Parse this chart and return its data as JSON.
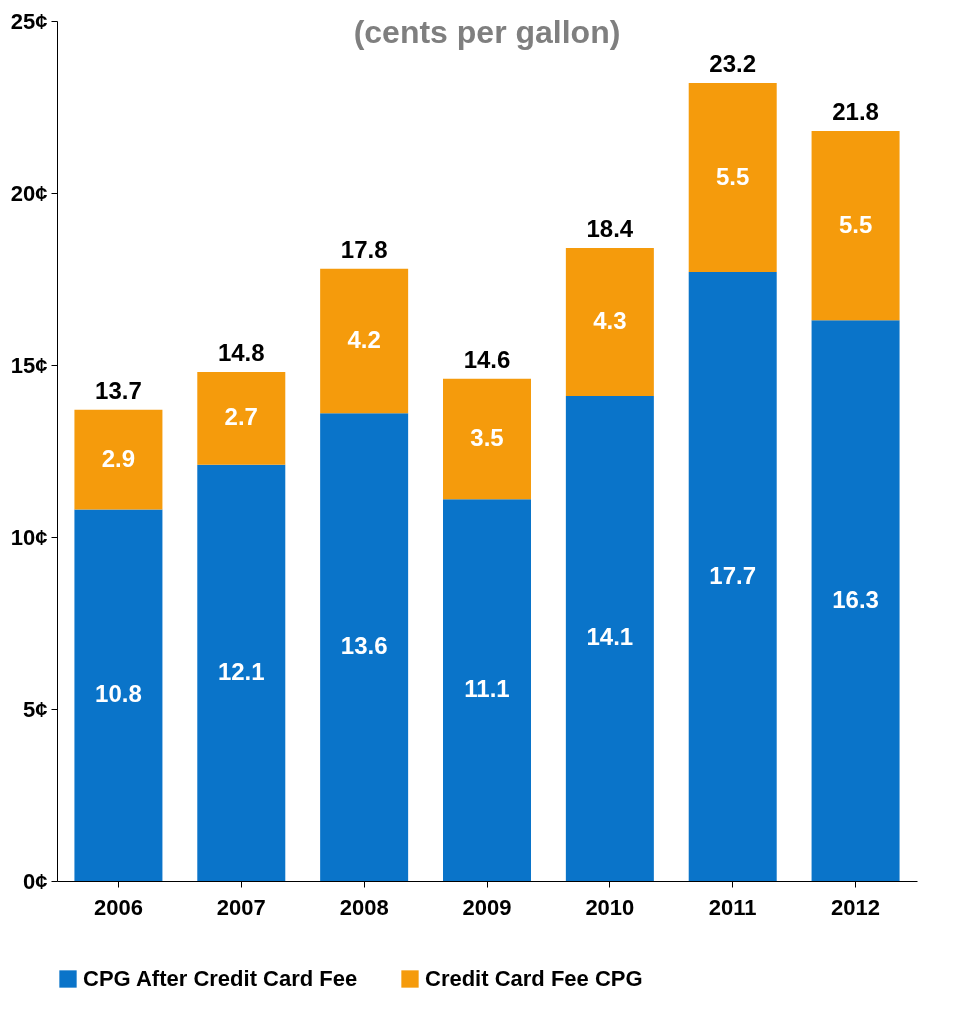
{
  "chart_data": {
    "type": "bar",
    "title": "(cents per gallon)",
    "categories": [
      "2006",
      "2007",
      "2008",
      "2009",
      "2010",
      "2011",
      "2012"
    ],
    "series": [
      {
        "name": "CPG After Credit Card Fee",
        "color": "#0a74c9",
        "values": [
          10.8,
          12.1,
          13.6,
          11.1,
          14.1,
          17.7,
          16.3
        ]
      },
      {
        "name": "Credit Card Fee CPG",
        "color": "#f59b0c",
        "values": [
          2.9,
          2.7,
          4.2,
          3.5,
          4.3,
          5.5,
          5.5
        ]
      }
    ],
    "stacked": true,
    "data_labels": true,
    "totals": [
      "13.7",
      "14.8",
      "17.8",
      "14.6",
      "18.4",
      "23.2",
      "21.8"
    ],
    "ylim": [
      0,
      25
    ],
    "yticks": [
      {
        "value": 0,
        "label": "0¢"
      },
      {
        "value": 5,
        "label": "5¢"
      },
      {
        "value": 10,
        "label": "10¢"
      },
      {
        "value": 15,
        "label": "15¢"
      },
      {
        "value": 20,
        "label": "20¢"
      },
      {
        "value": 25,
        "label": "25¢"
      }
    ],
    "legend": "bottom"
  }
}
